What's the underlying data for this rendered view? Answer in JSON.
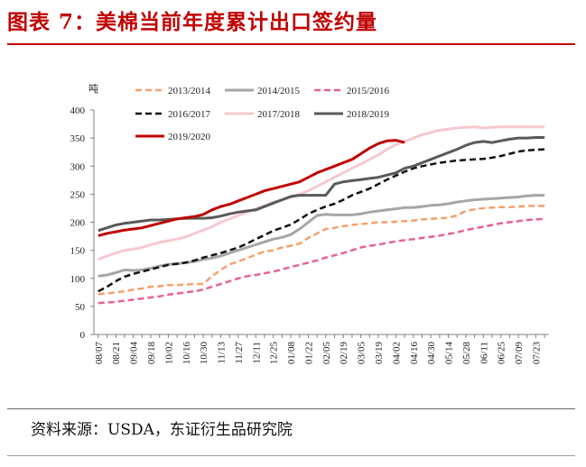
{
  "header": {
    "title": "图表 7：美棉当前年度累计出口签约量"
  },
  "footer": {
    "source": "资料来源：USDA，东证衍生品研究院"
  },
  "chart_data": {
    "type": "line",
    "unit_label": "吨",
    "ylim": [
      0,
      400
    ],
    "yticks": [
      0,
      50,
      100,
      150,
      200,
      250,
      300,
      350,
      400
    ],
    "categories": [
      "08/07",
      "08/14",
      "08/21",
      "08/28",
      "09/04",
      "09/11",
      "09/18",
      "09/25",
      "10/02",
      "10/09",
      "10/16",
      "10/23",
      "10/30",
      "11/06",
      "11/13",
      "11/20",
      "11/27",
      "12/04",
      "12/11",
      "12/18",
      "12/25",
      "01/01",
      "01/08",
      "01/15",
      "01/22",
      "01/29",
      "02/05",
      "02/12",
      "02/19",
      "02/26",
      "03/05",
      "03/12",
      "03/19",
      "03/26",
      "04/02",
      "04/09",
      "04/16",
      "04/23",
      "04/30",
      "05/07",
      "05/14",
      "05/21",
      "05/28",
      "06/04",
      "06/11",
      "06/18",
      "06/25",
      "07/02",
      "07/09",
      "07/16",
      "07/23",
      "07/30"
    ],
    "x_tick_labels": [
      "08/07",
      "08/21",
      "09/04",
      "09/18",
      "10/02",
      "10/16",
      "10/30",
      "11/13",
      "11/27",
      "12/11",
      "12/25",
      "01/08",
      "01/22",
      "02/05",
      "02/19",
      "03/05",
      "03/19",
      "04/02",
      "04/16",
      "04/30",
      "05/14",
      "05/28",
      "06/11",
      "06/25",
      "07/09",
      "07/23"
    ],
    "legend_position": "top",
    "series": [
      {
        "name": "2013/2014",
        "color": "#f4a06e",
        "dash": "dash",
        "width": 2.5,
        "values": [
          72,
          73,
          75,
          77,
          80,
          82,
          85,
          86,
          88,
          88,
          89,
          90,
          90,
          104,
          115,
          125,
          130,
          136,
          142,
          148,
          150,
          155,
          158,
          162,
          172,
          180,
          188,
          190,
          193,
          195,
          197,
          198,
          200,
          200,
          201,
          202,
          203,
          205,
          206,
          207,
          208,
          212,
          220,
          223,
          225,
          226,
          227,
          227,
          228,
          229,
          229,
          229
        ]
      },
      {
        "name": "2014/2015",
        "color": "#a6a6a6",
        "dash": "solid",
        "width": 3,
        "values": [
          104,
          106,
          110,
          115,
          114,
          115,
          118,
          122,
          125,
          126,
          128,
          130,
          134,
          136,
          140,
          145,
          150,
          155,
          160,
          165,
          170,
          173,
          178,
          188,
          200,
          212,
          214,
          213,
          213,
          213,
          215,
          218,
          220,
          222,
          224,
          226,
          226,
          228,
          230,
          231,
          233,
          236,
          238,
          240,
          241,
          242,
          243,
          244,
          245,
          247,
          248,
          248
        ]
      },
      {
        "name": "2015/2016",
        "color": "#e8619a",
        "dash": "dash",
        "width": 2.5,
        "values": [
          56,
          57,
          58,
          60,
          62,
          64,
          66,
          68,
          71,
          73,
          75,
          77,
          80,
          85,
          90,
          95,
          100,
          104,
          106,
          109,
          112,
          116,
          120,
          124,
          128,
          132,
          137,
          141,
          145,
          150,
          155,
          158,
          160,
          163,
          166,
          168,
          170,
          172,
          174,
          176,
          179,
          182,
          186,
          189,
          192,
          195,
          198,
          200,
          202,
          204,
          205,
          206
        ]
      },
      {
        "name": "2016/2017",
        "color": "#111111",
        "dash": "dash",
        "width": 2.5,
        "values": [
          77,
          85,
          95,
          103,
          108,
          112,
          116,
          120,
          124,
          126,
          128,
          132,
          137,
          141,
          145,
          150,
          155,
          162,
          170,
          177,
          185,
          190,
          196,
          205,
          215,
          222,
          228,
          233,
          240,
          248,
          254,
          260,
          268,
          276,
          283,
          290,
          296,
          300,
          303,
          306,
          308,
          310,
          311,
          312,
          313,
          315,
          318,
          322,
          326,
          328,
          329,
          330
        ]
      },
      {
        "name": "2017/2018",
        "color": "#f7c8cf",
        "dash": "solid",
        "width": 3,
        "values": [
          134,
          140,
          145,
          150,
          152,
          155,
          160,
          164,
          167,
          170,
          174,
          180,
          186,
          192,
          200,
          206,
          212,
          218,
          224,
          230,
          236,
          240,
          244,
          250,
          256,
          264,
          272,
          280,
          288,
          296,
          304,
          312,
          320,
          330,
          338,
          344,
          350,
          356,
          360,
          364,
          366,
          368,
          369,
          370,
          368,
          369,
          370,
          370,
          370,
          370,
          370,
          370
        ]
      },
      {
        "name": "2018/2019",
        "color": "#595959",
        "dash": "solid",
        "width": 3,
        "values": [
          185,
          190,
          195,
          198,
          200,
          202,
          204,
          204,
          205,
          206,
          207,
          207,
          207,
          208,
          211,
          215,
          218,
          220,
          222,
          228,
          234,
          240,
          246,
          248,
          248,
          248,
          248,
          268,
          272,
          274,
          276,
          278,
          280,
          284,
          288,
          296,
          300,
          306,
          312,
          318,
          324,
          330,
          337,
          342,
          344,
          342,
          345,
          348,
          350,
          350,
          351,
          351
        ]
      },
      {
        "name": "2019/2020",
        "color": "#c00000",
        "dash": "solid",
        "width": 3,
        "values": [
          176,
          180,
          183,
          186,
          188,
          190,
          194,
          198,
          202,
          206,
          208,
          210,
          214,
          222,
          228,
          232,
          238,
          244,
          250,
          256,
          260,
          264,
          268,
          272,
          280,
          288,
          294,
          300,
          306,
          312,
          322,
          332,
          340,
          345,
          346,
          342,
          null,
          null,
          null,
          null,
          null,
          null,
          null,
          null,
          null,
          null,
          null,
          null,
          null,
          null,
          null,
          null
        ]
      }
    ]
  }
}
